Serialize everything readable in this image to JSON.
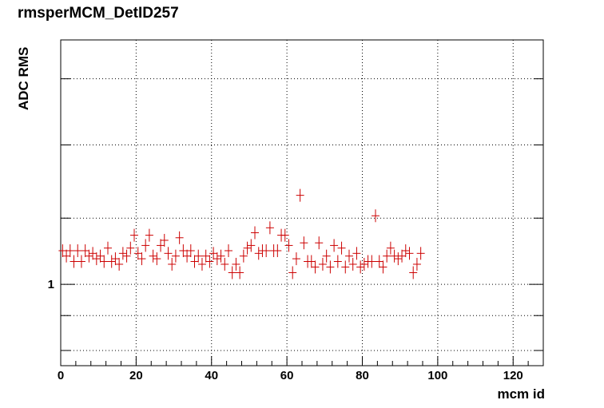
{
  "chart_data": {
    "type": "scatter",
    "title": "rmsperMCM_DetID257",
    "xlabel": "mcm id",
    "ylabel": "ADC RMS",
    "xlim": [
      0,
      128
    ],
    "ylim": [
      0.76,
      2.28
    ],
    "yscale": "log",
    "grid": true,
    "marker_color": "#cc0000",
    "x_ticks": [
      0,
      20,
      40,
      60,
      80,
      100,
      120
    ],
    "y_tick_labels": [
      {
        "value": 1,
        "label": "1"
      }
    ],
    "series": [
      {
        "values": [
          [
            0,
            1.12
          ],
          [
            1,
            1.1
          ],
          [
            2,
            1.12
          ],
          [
            3,
            1.08
          ],
          [
            4,
            1.12
          ],
          [
            5,
            1.08
          ],
          [
            6,
            1.12
          ],
          [
            7,
            1.1
          ],
          [
            8,
            1.11
          ],
          [
            9,
            1.09
          ],
          [
            10,
            1.1
          ],
          [
            11,
            1.08
          ],
          [
            12,
            1.13
          ],
          [
            13,
            1.08
          ],
          [
            14,
            1.09
          ],
          [
            15,
            1.07
          ],
          [
            16,
            1.11
          ],
          [
            17,
            1.1
          ],
          [
            18,
            1.13
          ],
          [
            19,
            1.18
          ],
          [
            20,
            1.11
          ],
          [
            21,
            1.09
          ],
          [
            22,
            1.14
          ],
          [
            23,
            1.18
          ],
          [
            24,
            1.1
          ],
          [
            25,
            1.09
          ],
          [
            26,
            1.14
          ],
          [
            27,
            1.16
          ],
          [
            28,
            1.11
          ],
          [
            29,
            1.07
          ],
          [
            30,
            1.1
          ],
          [
            31,
            1.17
          ],
          [
            32,
            1.12
          ],
          [
            33,
            1.1
          ],
          [
            34,
            1.12
          ],
          [
            35,
            1.08
          ],
          [
            36,
            1.1
          ],
          [
            37,
            1.07
          ],
          [
            38,
            1.1
          ],
          [
            39,
            1.08
          ],
          [
            40,
            1.11
          ],
          [
            41,
            1.09
          ],
          [
            42,
            1.1
          ],
          [
            43,
            1.07
          ],
          [
            44,
            1.12
          ],
          [
            45,
            1.04
          ],
          [
            46,
            1.07
          ],
          [
            47,
            1.04
          ],
          [
            48,
            1.1
          ],
          [
            49,
            1.13
          ],
          [
            50,
            1.14
          ],
          [
            51,
            1.19
          ],
          [
            52,
            1.11
          ],
          [
            53,
            1.12
          ],
          [
            54,
            1.12
          ],
          [
            55,
            1.21
          ],
          [
            56,
            1.12
          ],
          [
            57,
            1.12
          ],
          [
            58,
            1.18
          ],
          [
            59,
            1.18
          ],
          [
            60,
            1.14
          ],
          [
            61,
            1.04
          ],
          [
            62,
            1.09
          ],
          [
            63,
            1.35
          ],
          [
            64,
            1.15
          ],
          [
            65,
            1.08
          ],
          [
            66,
            1.08
          ],
          [
            67,
            1.06
          ],
          [
            68,
            1.15
          ],
          [
            69,
            1.07
          ],
          [
            70,
            1.1
          ],
          [
            71,
            1.06
          ],
          [
            72,
            1.14
          ],
          [
            73,
            1.08
          ],
          [
            74,
            1.13
          ],
          [
            75,
            1.06
          ],
          [
            76,
            1.1
          ],
          [
            77,
            1.07
          ],
          [
            78,
            1.11
          ],
          [
            79,
            1.06
          ],
          [
            80,
            1.07
          ],
          [
            81,
            1.08
          ],
          [
            82,
            1.08
          ],
          [
            83,
            1.26
          ],
          [
            84,
            1.08
          ],
          [
            85,
            1.06
          ],
          [
            86,
            1.1
          ],
          [
            87,
            1.13
          ],
          [
            88,
            1.1
          ],
          [
            89,
            1.09
          ],
          [
            90,
            1.1
          ],
          [
            91,
            1.12
          ],
          [
            92,
            1.11
          ],
          [
            93,
            1.04
          ],
          [
            94,
            1.07
          ],
          [
            95,
            1.11
          ]
        ]
      }
    ]
  }
}
